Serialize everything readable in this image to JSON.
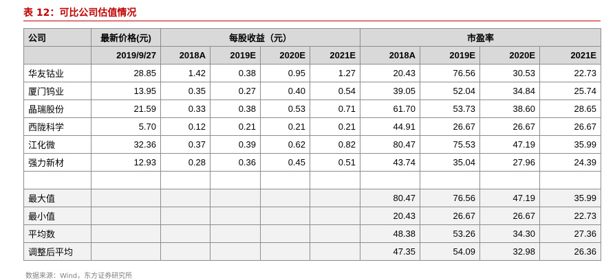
{
  "title": "表 12：可比公司估值情况",
  "header": {
    "company": "公司",
    "latest_price": "最新价格(元)",
    "eps": "每股收益（元）",
    "pe": "市盈率",
    "price_date": "2019/9/27",
    "eps_years": [
      "2018A",
      "2019E",
      "2020E",
      "2021E"
    ],
    "pe_years": [
      "2018A",
      "2019E",
      "2020E",
      "2021E"
    ]
  },
  "rows": [
    {
      "name": "华友钴业",
      "price": "28.85",
      "eps": [
        "1.42",
        "0.38",
        "0.95",
        "1.27"
      ],
      "pe": [
        "20.43",
        "76.56",
        "30.53",
        "22.73"
      ]
    },
    {
      "name": "厦门钨业",
      "price": "13.95",
      "eps": [
        "0.35",
        "0.27",
        "0.40",
        "0.54"
      ],
      "pe": [
        "39.05",
        "52.04",
        "34.84",
        "25.74"
      ]
    },
    {
      "name": "晶瑞股份",
      "price": "21.59",
      "eps": [
        "0.33",
        "0.38",
        "0.53",
        "0.71"
      ],
      "pe": [
        "61.70",
        "53.73",
        "38.60",
        "28.65"
      ]
    },
    {
      "name": "西陇科学",
      "price": "5.70",
      "eps": [
        "0.12",
        "0.21",
        "0.21",
        "0.21"
      ],
      "pe": [
        "44.91",
        "26.67",
        "26.67",
        "26.67"
      ]
    },
    {
      "name": "江化微",
      "price": "32.36",
      "eps": [
        "0.37",
        "0.39",
        "0.62",
        "0.82"
      ],
      "pe": [
        "80.47",
        "75.53",
        "47.19",
        "35.99"
      ]
    },
    {
      "name": "强力新材",
      "price": "12.93",
      "eps": [
        "0.28",
        "0.36",
        "0.45",
        "0.51"
      ],
      "pe": [
        "43.74",
        "35.04",
        "27.96",
        "24.39"
      ]
    }
  ],
  "stats": [
    {
      "name": "最大值",
      "pe": [
        "80.47",
        "76.56",
        "47.19",
        "35.99"
      ]
    },
    {
      "name": "最小值",
      "pe": [
        "20.43",
        "26.67",
        "26.67",
        "22.73"
      ]
    },
    {
      "name": "平均数",
      "pe": [
        "48.38",
        "53.26",
        "34.30",
        "27.36"
      ]
    },
    {
      "name": "调整后平均",
      "pe": [
        "47.35",
        "54.09",
        "32.98",
        "26.36"
      ]
    }
  ],
  "source": "数据来源：Wind，东方证券研究所",
  "colors": {
    "accent": "#c00000",
    "header_bg": "#d9d9d9",
    "stat_bg": "#f2f2f2",
    "border": "#8c8c8c"
  }
}
